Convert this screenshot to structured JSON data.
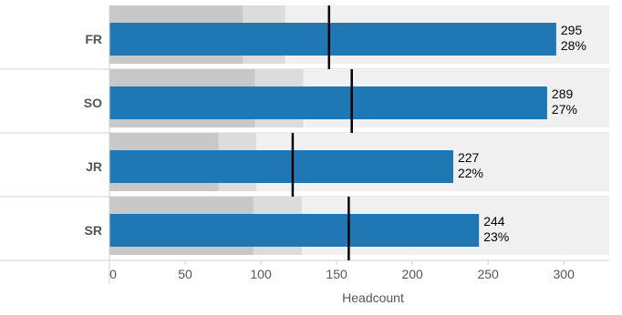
{
  "chart_data": {
    "type": "bar",
    "subtype": "bullet",
    "orientation": "horizontal",
    "xlabel": "Headcount",
    "xlim": [
      0,
      330
    ],
    "xticks": [
      0,
      50,
      100,
      150,
      200,
      250,
      300
    ],
    "grid": false,
    "categories": [
      "FR",
      "SO",
      "JR",
      "SR"
    ],
    "series": [
      {
        "values": [
          295,
          289,
          227,
          244
        ]
      }
    ],
    "percent_labels": [
      "28%",
      "27%",
      "22%",
      "23%"
    ],
    "targets": [
      145,
      160,
      121,
      158
    ],
    "ranges": [
      [
        88,
        116
      ],
      [
        96,
        128
      ],
      [
        72,
        97
      ],
      [
        95,
        127
      ]
    ],
    "colors": {
      "bar": "#1f77b4",
      "range_dark": "#c8c8c8",
      "range_mid": "#dcdcdc",
      "background": "#f0f0f0",
      "target": "#000000",
      "axis_text": "#555555",
      "category_text": "#555555",
      "separator": "#d0d0d0"
    }
  }
}
